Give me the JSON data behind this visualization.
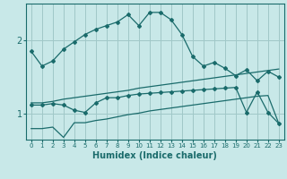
{
  "title": "",
  "xlabel": "Humidex (Indice chaleur)",
  "ylabel": "",
  "background_color": "#c8e8e8",
  "line_color": "#1a6b6b",
  "grid_color": "#a0c8c8",
  "xlim": [
    -0.5,
    23.5
  ],
  "ylim": [
    0.65,
    2.5
  ],
  "yticks": [
    1,
    2
  ],
  "xticks": [
    0,
    1,
    2,
    3,
    4,
    5,
    6,
    7,
    8,
    9,
    10,
    11,
    12,
    13,
    14,
    15,
    16,
    17,
    18,
    19,
    20,
    21,
    22,
    23
  ],
  "series": [
    {
      "x": [
        0,
        1,
        2,
        3,
        4,
        5,
        6,
        7,
        8,
        9,
        10,
        11,
        12,
        13,
        14,
        15,
        16,
        17,
        18,
        19,
        20,
        21,
        22,
        23
      ],
      "y": [
        1.85,
        1.65,
        1.72,
        1.88,
        1.98,
        2.08,
        2.15,
        2.2,
        2.25,
        2.35,
        2.2,
        2.38,
        2.38,
        2.28,
        2.08,
        1.78,
        1.65,
        1.7,
        1.62,
        1.52,
        1.6,
        1.45,
        1.58,
        1.5
      ],
      "marker": true
    },
    {
      "x": [
        0,
        1,
        2,
        3,
        4,
        5,
        6,
        7,
        8,
        9,
        10,
        11,
        12,
        13,
        14,
        15,
        16,
        17,
        18,
        19,
        20,
        21,
        22,
        23
      ],
      "y": [
        1.15,
        1.15,
        1.17,
        1.2,
        1.22,
        1.24,
        1.26,
        1.28,
        1.3,
        1.32,
        1.35,
        1.37,
        1.39,
        1.41,
        1.43,
        1.45,
        1.47,
        1.49,
        1.51,
        1.53,
        1.55,
        1.57,
        1.59,
        1.61
      ],
      "marker": false
    },
    {
      "x": [
        0,
        1,
        2,
        3,
        4,
        5,
        6,
        7,
        8,
        9,
        10,
        11,
        12,
        13,
        14,
        15,
        16,
        17,
        18,
        19,
        20,
        21,
        22,
        23
      ],
      "y": [
        1.12,
        1.12,
        1.14,
        1.12,
        1.05,
        1.02,
        1.15,
        1.22,
        1.22,
        1.25,
        1.27,
        1.28,
        1.29,
        1.3,
        1.31,
        1.32,
        1.33,
        1.34,
        1.35,
        1.36,
        1.02,
        1.3,
        1.02,
        0.87
      ],
      "marker": true
    },
    {
      "x": [
        0,
        1,
        2,
        3,
        4,
        5,
        6,
        7,
        8,
        9,
        10,
        11,
        12,
        13,
        14,
        15,
        16,
        17,
        18,
        19,
        20,
        21,
        22,
        23
      ],
      "y": [
        0.8,
        0.8,
        0.82,
        0.68,
        0.88,
        0.88,
        0.91,
        0.93,
        0.96,
        0.99,
        1.01,
        1.04,
        1.06,
        1.08,
        1.1,
        1.12,
        1.14,
        1.16,
        1.18,
        1.2,
        1.22,
        1.24,
        1.25,
        0.87
      ],
      "marker": false
    }
  ]
}
